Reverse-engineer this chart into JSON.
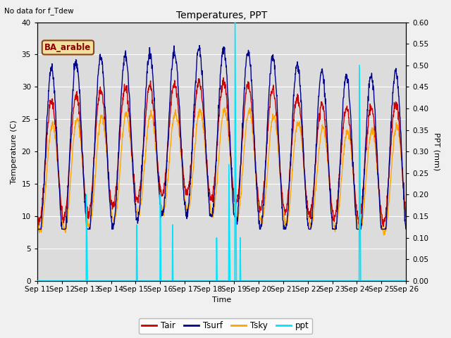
{
  "title": "Temperatures, PPT",
  "no_data_text": "No data for f_Tdew",
  "box_label": "BA_arable",
  "xlabel": "Time",
  "ylabel_left": "Temperature (C)",
  "ylabel_right": "PPT (mm)",
  "ylim_left": [
    0,
    40
  ],
  "ylim_right": [
    0.0,
    0.6
  ],
  "bg_color": "#dcdcdc",
  "fig_color": "#f0f0f0",
  "tair_color": "#cc0000",
  "tsurf_color": "#00008b",
  "tsky_color": "#ffa500",
  "ppt_color": "#00e5ff",
  "xtick_labels": [
    "Sep 11",
    "Sep 12",
    "Sep 13",
    "Sep 14",
    "Sep 15",
    "Sep 16",
    "Sep 17",
    "Sep 18",
    "Sep 19",
    "Sep 20",
    "Sep 21",
    "Sep 22",
    "Sep 23",
    "Sep 24",
    "Sep 25",
    "Sep 26"
  ],
  "yticks_left": [
    0,
    5,
    10,
    15,
    20,
    25,
    30,
    35,
    40
  ],
  "yticks_right": [
    0.0,
    0.05,
    0.1,
    0.15,
    0.2,
    0.25,
    0.3,
    0.35,
    0.4,
    0.45,
    0.5,
    0.55,
    0.6
  ],
  "legend_entries": [
    "Tair",
    "Tsurf",
    "Tsky",
    "ppt"
  ],
  "legend_colors": [
    "#cc0000",
    "#00008b",
    "#ffa500",
    "#00e5ff"
  ]
}
